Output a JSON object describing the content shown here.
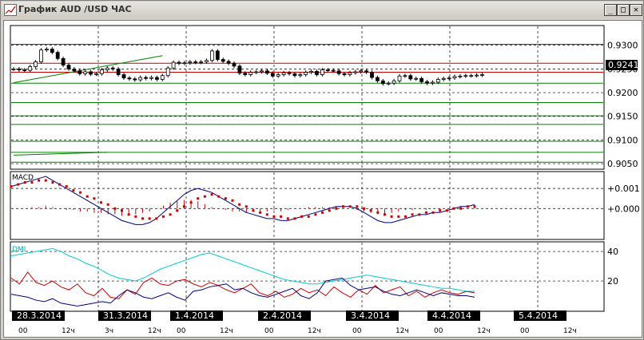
{
  "window": {
    "title": "График AUD /USD  ЧАС",
    "minimize": "_",
    "maximize": "□",
    "close": "✕"
  },
  "chart_data": [
    {
      "type": "candlestick",
      "title": "",
      "current_price": "0.9241",
      "ylim": [
        0.904,
        0.934
      ],
      "yticks": [
        "0.9300",
        "0.9250",
        "0.9200",
        "0.9150",
        "0.9100",
        "0.9050"
      ],
      "ytick_values": [
        0.93,
        0.925,
        0.92,
        0.915,
        0.91,
        0.905
      ],
      "hlines_red": [
        0.9302,
        0.9262,
        0.9243
      ],
      "hlines_green": [
        0.922,
        0.9179,
        0.9151,
        0.9133,
        0.9097,
        0.9074,
        0.9053
      ],
      "trendlines": [
        {
          "x1": 0,
          "y1": 0.9221,
          "x2": 27,
          "y2": 0.9278,
          "color": "#008000"
        },
        {
          "x1": 0,
          "y1": 0.9068,
          "x2": 17,
          "y2": 0.9074,
          "color": "#008000"
        }
      ],
      "closes": [
        0.925,
        0.9248,
        0.9247,
        0.9255,
        0.9265,
        0.929,
        0.9292,
        0.9285,
        0.9272,
        0.9258,
        0.925,
        0.9246,
        0.924,
        0.9244,
        0.9239,
        0.924,
        0.9248,
        0.9252,
        0.925,
        0.9238,
        0.9231,
        0.9229,
        0.9227,
        0.9232,
        0.923,
        0.9232,
        0.9228,
        0.9236,
        0.9252,
        0.9264,
        0.9262,
        0.9263,
        0.9265,
        0.9264,
        0.9265,
        0.9268,
        0.9288,
        0.927,
        0.9266,
        0.9262,
        0.9256,
        0.9241,
        0.9238,
        0.9243,
        0.9244,
        0.9246,
        0.9241,
        0.9235,
        0.9238,
        0.9242,
        0.924,
        0.9236,
        0.9238,
        0.9243,
        0.9245,
        0.9238,
        0.9248,
        0.9247,
        0.9246,
        0.924,
        0.9238,
        0.9242,
        0.9244,
        0.9246,
        0.9243,
        0.9232,
        0.9225,
        0.9219,
        0.922,
        0.9225,
        0.9235,
        0.9236,
        0.9229,
        0.923,
        0.9223,
        0.922,
        0.9222,
        0.9228,
        0.923,
        0.9231,
        0.9234,
        0.9235,
        0.9236,
        0.9236,
        0.9237,
        0.9238
      ]
    },
    {
      "type": "line",
      "title": "MACD",
      "ylim": [
        -0.0015,
        0.0018
      ],
      "yticks": [
        "+0.001",
        "+0.000"
      ],
      "ytick_values": [
        0.001,
        0.0
      ],
      "series": [
        {
          "color": "#000080",
          "values": [
            0.0011,
            0.0012,
            0.0013,
            0.0014,
            0.0015,
            0.0016,
            0.0014,
            0.0012,
            0.001,
            0.0008,
            0.0006,
            0.0004,
            0.0002,
            0.0,
            -0.0002,
            -0.0004,
            -0.0006,
            -0.0007,
            -0.0008,
            -0.0008,
            -0.0007,
            -0.0005,
            -0.0002,
            0.0001,
            0.0004,
            0.0007,
            0.0009,
            0.001,
            0.0009,
            0.0008,
            0.0006,
            0.0004,
            0.0002,
            0.0,
            -0.0002,
            -0.0003,
            -0.0004,
            -0.0005,
            -0.0005,
            -0.0006,
            -0.0006,
            -0.0005,
            -0.0004,
            -0.0003,
            -0.0002,
            -0.0001,
            0.0,
            0.0001,
            0.0001,
            0.0001,
            0.0,
            -0.0002,
            -0.0004,
            -0.0006,
            -0.0007,
            -0.0007,
            -0.0006,
            -0.0005,
            -0.0004,
            -0.0003,
            -0.0003,
            -0.0002,
            -0.0002,
            -0.0001,
            0.0,
            0.0001,
            0.0001,
            0.0002
          ]
        },
        {
          "color": "#cc0000",
          "values": [
            0.0011,
            0.0012,
            0.0013,
            0.0013,
            0.0014,
            0.0014,
            0.0013,
            0.0012,
            0.0011,
            0.0009,
            0.0008,
            0.0006,
            0.0005,
            0.0003,
            0.0002,
            0.0,
            -0.0001,
            -0.0003,
            -0.0004,
            -0.0005,
            -0.0005,
            -0.0005,
            -0.0004,
            -0.0003,
            -0.0001,
            0.0001,
            0.0003,
            0.0005,
            0.0006,
            0.0007,
            0.0006,
            0.0005,
            0.0004,
            0.0002,
            0.0001,
            -0.0001,
            -0.0002,
            -0.0003,
            -0.0004,
            -0.0004,
            -0.0005,
            -0.0005,
            -0.0004,
            -0.0004,
            -0.0003,
            -0.0002,
            -0.0001,
            0.0,
            0.0001,
            0.0001,
            0.0001,
            0.0,
            -0.0001,
            -0.0002,
            -0.0003,
            -0.0004,
            -0.0004,
            -0.0004,
            -0.0003,
            -0.0003,
            -0.0002,
            -0.0002,
            -0.0001,
            -0.0001,
            0.0,
            0.0,
            0.0001,
            0.0001
          ]
        }
      ]
    },
    {
      "type": "line",
      "title": "DMI",
      "ylim": [
        0,
        46
      ],
      "yticks": [
        "40",
        "20"
      ],
      "ytick_values": [
        40,
        20
      ],
      "series": [
        {
          "color": "#00cccc",
          "values": [
            37,
            38,
            39,
            40,
            41,
            42,
            40,
            37,
            35,
            32,
            30,
            27,
            24,
            22,
            21,
            20,
            22,
            25,
            28,
            30,
            32,
            34,
            36,
            38,
            39,
            37,
            35,
            33,
            31,
            29,
            27,
            25,
            23,
            21,
            20,
            19,
            18,
            18,
            19,
            20,
            21,
            22,
            23,
            24,
            23,
            22,
            21,
            20,
            19,
            18,
            17,
            16,
            15,
            15,
            14,
            13,
            13
          ]
        },
        {
          "color": "#cc0000",
          "values": [
            22,
            18,
            26,
            19,
            17,
            20,
            16,
            14,
            18,
            12,
            10,
            15,
            9,
            8,
            14,
            11,
            19,
            22,
            18,
            17,
            20,
            21,
            18,
            16,
            19,
            17,
            14,
            12,
            15,
            18,
            12,
            10,
            13,
            9,
            11,
            15,
            12,
            14,
            10,
            16,
            12,
            9,
            14,
            11,
            17,
            12,
            14,
            16,
            10,
            13,
            9,
            12,
            14,
            12,
            11,
            13,
            12
          ]
        },
        {
          "color": "#000080",
          "values": [
            11,
            10,
            9,
            7,
            6,
            8,
            5,
            4,
            3,
            4,
            5,
            6,
            5,
            10,
            14,
            12,
            9,
            8,
            10,
            12,
            9,
            7,
            13,
            14,
            16,
            17,
            18,
            14,
            15,
            12,
            10,
            9,
            11,
            13,
            15,
            10,
            8,
            12,
            20,
            21,
            22,
            17,
            14,
            15,
            16,
            13,
            11,
            10,
            12,
            14,
            12,
            10,
            12,
            11,
            10,
            10,
            9
          ]
        }
      ]
    }
  ],
  "dates": [
    {
      "label": "28.3.2014",
      "sub1": "00",
      "sub2": "12ч"
    },
    {
      "label": "31.3.2014",
      "sub1": "3ч",
      "sub2": "12ч"
    },
    {
      "label": "1.4.2014",
      "sub1": "00",
      "sub2": "12ч"
    },
    {
      "label": "2.4.2014",
      "sub1": "00",
      "sub2": "12ч"
    },
    {
      "label": "3.4.2014",
      "sub1": "00",
      "sub2": "12ч"
    },
    {
      "label": "4.4.2014",
      "sub1": "00",
      "sub2": "12ч"
    },
    {
      "label": "5.4.2014",
      "sub1": "00",
      "sub2": "12ч"
    }
  ]
}
